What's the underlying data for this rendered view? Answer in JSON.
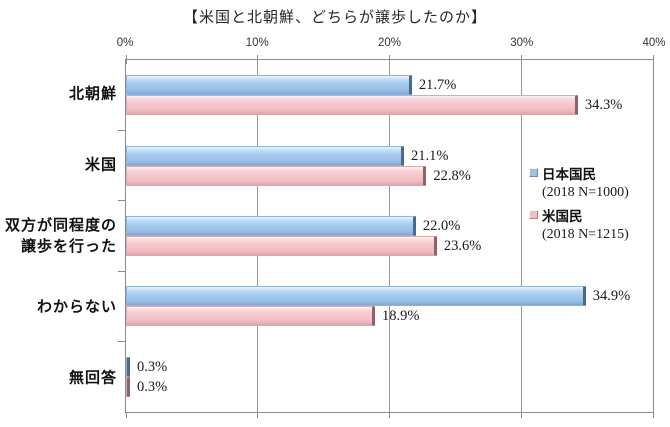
{
  "title": "【米国と北朝鮮、どちらが譲歩したのか】",
  "axis": {
    "x_ticks": [
      "0%",
      "10%",
      "20%",
      "30%",
      "40%"
    ],
    "xlim": [
      0,
      40
    ],
    "grid_color": "#8c8c8c"
  },
  "legend": {
    "items": [
      {
        "label": "日本国民",
        "subtitle": "(2018 N=1000)",
        "color": "#9dc3e6"
      },
      {
        "label": "米国民",
        "subtitle": "(2018 N=1215)",
        "color": "#f2c0c5"
      }
    ]
  },
  "chart_data": {
    "type": "bar",
    "orientation": "horizontal",
    "title": "【米国と北朝鮮、どちらが譲歩したのか】",
    "categories": [
      "北朝鮮",
      "米国",
      "双方が同程度の譲歩を行った",
      "わからない",
      "無回答"
    ],
    "category_display": [
      [
        "北朝鮮"
      ],
      [
        "米国"
      ],
      [
        "双方が同程度の",
        "譲歩を行った"
      ],
      [
        "わからない"
      ],
      [
        "無回答"
      ]
    ],
    "series": [
      {
        "name": "日本国民",
        "subtitle": "(2018 N=1000)",
        "color": "#9dc3e6",
        "values": [
          21.7,
          21.1,
          22.0,
          34.9,
          0.3
        ]
      },
      {
        "name": "米国民",
        "subtitle": "(2018 N=1215)",
        "color": "#f2c0c5",
        "values": [
          34.3,
          22.8,
          23.6,
          18.9,
          0.3
        ]
      }
    ],
    "value_labels": [
      [
        "21.7%",
        "34.3%"
      ],
      [
        "21.1%",
        "22.8%"
      ],
      [
        "22.0%",
        "23.6%"
      ],
      [
        "34.9%",
        "18.9%"
      ],
      [
        "0.3%",
        "0.3%"
      ]
    ],
    "xlim": [
      0,
      40
    ],
    "x_ticks": [
      "0%",
      "10%",
      "20%",
      "30%",
      "40%"
    ],
    "grid": true,
    "legend_position": "inside-right"
  }
}
